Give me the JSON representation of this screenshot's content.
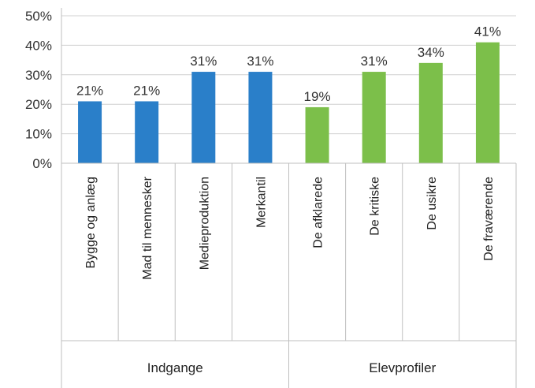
{
  "chart_data": {
    "type": "bar",
    "categories": [
      "Bygge og anlæg",
      "Mad til mennesker",
      "Medieproduktion",
      "Merkantil",
      "De afklarede",
      "De kritiske",
      "De usikre",
      "De fraværende"
    ],
    "values": [
      21,
      21,
      31,
      31,
      19,
      31,
      34,
      41
    ],
    "data_labels": [
      "21%",
      "21%",
      "31%",
      "31%",
      "19%",
      "31%",
      "34%",
      "41%"
    ],
    "groups": [
      {
        "label": "Indgange",
        "count": 4,
        "color": "#2a7fc9"
      },
      {
        "label": "Elevprofiler",
        "count": 4,
        "color": "#7cbf4a"
      }
    ],
    "yticks": [
      "0%",
      "10%",
      "20%",
      "30%",
      "40%",
      "50%"
    ],
    "ylim": [
      0,
      50
    ],
    "grid": true,
    "title": "",
    "xlabel": "",
    "ylabel": ""
  }
}
